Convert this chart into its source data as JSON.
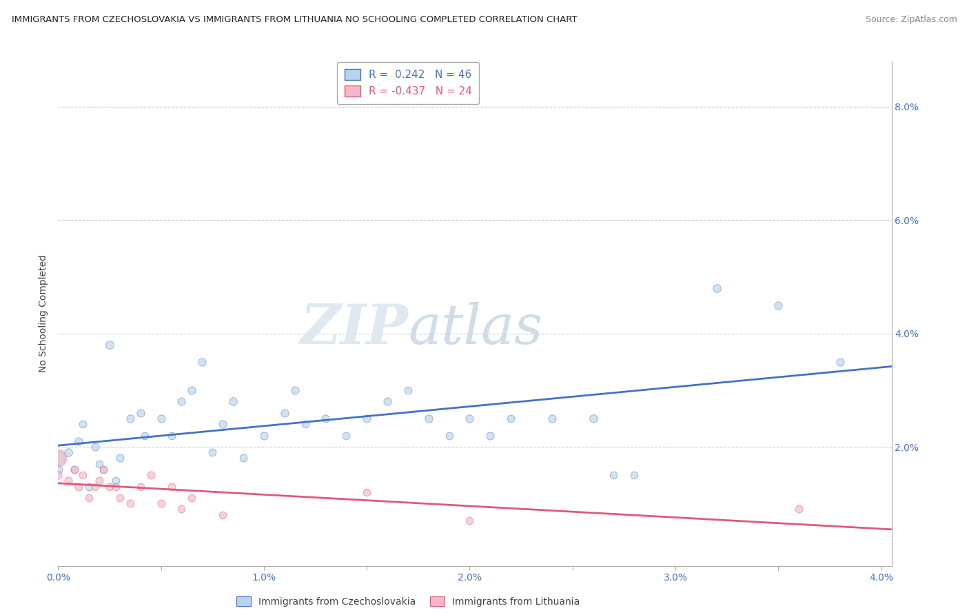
{
  "title": "IMMIGRANTS FROM CZECHOSLOVAKIA VS IMMIGRANTS FROM LITHUANIA NO SCHOOLING COMPLETED CORRELATION CHART",
  "source": "Source: ZipAtlas.com",
  "ylabel": "No Schooling Completed",
  "legend_r1": "R =  0.242   N = 46",
  "legend_r2": "R = -0.437   N = 24",
  "color_czech": "#b8d4ec",
  "color_lith": "#f5b8c8",
  "line_color_czech": "#4472c4",
  "line_color_lith": "#e05878",
  "watermark_zip": "ZIP",
  "watermark_atlas": "atlas",
  "czech_data": [
    [
      0.0,
      0.018,
      220
    ],
    [
      0.0,
      0.016,
      80
    ],
    [
      0.05,
      0.019,
      70
    ],
    [
      0.08,
      0.016,
      60
    ],
    [
      0.1,
      0.021,
      65
    ],
    [
      0.12,
      0.024,
      60
    ],
    [
      0.15,
      0.013,
      60
    ],
    [
      0.18,
      0.02,
      65
    ],
    [
      0.2,
      0.017,
      60
    ],
    [
      0.22,
      0.016,
      60
    ],
    [
      0.25,
      0.038,
      75
    ],
    [
      0.28,
      0.014,
      60
    ],
    [
      0.3,
      0.018,
      65
    ],
    [
      0.35,
      0.025,
      65
    ],
    [
      0.4,
      0.026,
      65
    ],
    [
      0.42,
      0.022,
      60
    ],
    [
      0.5,
      0.025,
      65
    ],
    [
      0.55,
      0.022,
      60
    ],
    [
      0.6,
      0.028,
      65
    ],
    [
      0.65,
      0.03,
      65
    ],
    [
      0.7,
      0.035,
      65
    ],
    [
      0.75,
      0.019,
      60
    ],
    [
      0.8,
      0.024,
      65
    ],
    [
      0.85,
      0.028,
      70
    ],
    [
      0.9,
      0.018,
      60
    ],
    [
      1.0,
      0.022,
      65
    ],
    [
      1.1,
      0.026,
      65
    ],
    [
      1.15,
      0.03,
      65
    ],
    [
      1.2,
      0.024,
      60
    ],
    [
      1.3,
      0.025,
      65
    ],
    [
      1.4,
      0.022,
      60
    ],
    [
      1.5,
      0.025,
      65
    ],
    [
      1.6,
      0.028,
      65
    ],
    [
      1.7,
      0.03,
      60
    ],
    [
      1.8,
      0.025,
      65
    ],
    [
      1.9,
      0.022,
      60
    ],
    [
      2.0,
      0.025,
      65
    ],
    [
      2.1,
      0.022,
      65
    ],
    [
      2.2,
      0.025,
      60
    ],
    [
      2.4,
      0.025,
      65
    ],
    [
      2.6,
      0.025,
      70
    ],
    [
      2.7,
      0.015,
      60
    ],
    [
      2.8,
      0.015,
      60
    ],
    [
      3.2,
      0.048,
      70
    ],
    [
      3.5,
      0.045,
      65
    ],
    [
      3.8,
      0.035,
      65
    ]
  ],
  "lith_data": [
    [
      0.0,
      0.018,
      320
    ],
    [
      0.0,
      0.015,
      70
    ],
    [
      0.05,
      0.014,
      65
    ],
    [
      0.08,
      0.016,
      60
    ],
    [
      0.1,
      0.013,
      65
    ],
    [
      0.12,
      0.015,
      60
    ],
    [
      0.15,
      0.011,
      60
    ],
    [
      0.18,
      0.013,
      60
    ],
    [
      0.2,
      0.014,
      65
    ],
    [
      0.22,
      0.016,
      60
    ],
    [
      0.25,
      0.013,
      60
    ],
    [
      0.28,
      0.013,
      60
    ],
    [
      0.3,
      0.011,
      60
    ],
    [
      0.35,
      0.01,
      65
    ],
    [
      0.4,
      0.013,
      60
    ],
    [
      0.45,
      0.015,
      65
    ],
    [
      0.5,
      0.01,
      65
    ],
    [
      0.55,
      0.013,
      65
    ],
    [
      0.6,
      0.009,
      60
    ],
    [
      0.65,
      0.011,
      60
    ],
    [
      0.8,
      0.008,
      60
    ],
    [
      1.5,
      0.012,
      60
    ],
    [
      2.0,
      0.007,
      60
    ],
    [
      3.6,
      0.009,
      65
    ]
  ],
  "bg_color": "#ffffff",
  "grid_color": "#cccccc",
  "xlim": [
    0.0,
    4.05
  ],
  "ylim": [
    -0.001,
    0.088
  ]
}
